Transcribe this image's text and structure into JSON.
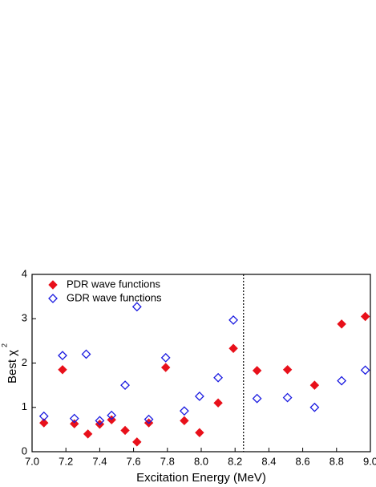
{
  "chart_data": {
    "type": "scatter",
    "xlabel": "Excitation Energy (MeV)",
    "ylabel": "Best χ",
    "ylabel_sup": "2",
    "xlim": [
      7.0,
      9.0
    ],
    "xticks": [
      {
        "value": 7.0,
        "label": "7.0"
      },
      {
        "value": 7.2,
        "label": "7.2"
      },
      {
        "value": 7.4,
        "label": "7.4"
      },
      {
        "value": 7.6,
        "label": "7.6"
      },
      {
        "value": 7.8,
        "label": "7.8"
      },
      {
        "value": 8.0,
        "label": "8.0"
      },
      {
        "value": 8.2,
        "label": "8.2"
      },
      {
        "value": 8.4,
        "label": "8.4"
      },
      {
        "value": 8.6,
        "label": "8.6"
      },
      {
        "value": 8.8,
        "label": "8.8"
      },
      {
        "value": 9.0,
        "label": "9.0"
      }
    ],
    "ylim": [
      0,
      4
    ],
    "yticks": [
      0,
      1,
      2,
      3,
      4
    ],
    "vline": 8.25,
    "legend": "upper left",
    "series": [
      {
        "name": "PDR wave functions",
        "color": "#e8101a",
        "filled": true,
        "x": [
          7.07,
          7.18,
          7.25,
          7.33,
          7.4,
          7.47,
          7.55,
          7.62,
          7.69,
          7.79,
          7.9,
          7.99,
          8.1,
          8.19,
          8.33,
          8.51,
          8.67,
          8.83,
          8.97
        ],
        "values": [
          0.65,
          1.85,
          0.63,
          0.4,
          0.62,
          0.72,
          0.48,
          0.22,
          0.65,
          1.9,
          0.7,
          0.43,
          1.1,
          2.33,
          1.83,
          1.85,
          1.5,
          2.88,
          3.05
        ]
      },
      {
        "name": "GDR wave functions",
        "color": "#1a1ae0",
        "filled": false,
        "x": [
          7.07,
          7.18,
          7.25,
          7.32,
          7.4,
          7.47,
          7.55,
          7.62,
          7.69,
          7.79,
          7.9,
          7.99,
          8.1,
          8.19,
          8.33,
          8.51,
          8.67,
          8.83,
          8.97
        ],
        "values": [
          0.8,
          2.17,
          0.75,
          2.2,
          0.7,
          0.82,
          1.5,
          3.27,
          0.73,
          2.12,
          0.92,
          1.25,
          1.67,
          2.97,
          1.2,
          1.22,
          1.0,
          1.6,
          1.84
        ]
      }
    ]
  }
}
